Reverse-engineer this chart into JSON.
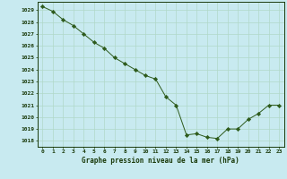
{
  "x": [
    0,
    1,
    2,
    3,
    4,
    5,
    6,
    7,
    8,
    9,
    10,
    11,
    12,
    13,
    14,
    15,
    16,
    17,
    18,
    19,
    20,
    21,
    22,
    23
  ],
  "y": [
    1029.3,
    1028.9,
    1028.2,
    1027.7,
    1027.0,
    1026.3,
    1025.8,
    1025.0,
    1024.5,
    1024.0,
    1023.5,
    1023.2,
    1021.7,
    1021.0,
    1018.5,
    1018.6,
    1018.3,
    1018.2,
    1019.0,
    1019.0,
    1019.8,
    1020.3,
    1021.0,
    1021.0
  ],
  "line_color": "#2d5a1b",
  "marker": "D",
  "marker_size": 2.2,
  "bg_color": "#c8eaf0",
  "grid_color": "#b0d8c8",
  "xlabel": "Graphe pression niveau de la mer (hPa)",
  "xlabel_color": "#1a3a0a",
  "tick_color": "#1a3a0a",
  "ylim_min": 1017.5,
  "ylim_max": 1029.7,
  "xlim_min": -0.5,
  "xlim_max": 23.5,
  "ytick_vals": [
    1018,
    1019,
    1020,
    1021,
    1022,
    1023,
    1024,
    1025,
    1026,
    1027,
    1028,
    1029
  ],
  "xtick_vals": [
    0,
    1,
    2,
    3,
    4,
    5,
    6,
    7,
    8,
    9,
    10,
    11,
    12,
    13,
    14,
    15,
    16,
    17,
    18,
    19,
    20,
    21,
    22,
    23
  ],
  "xtick_labels": [
    "0",
    "1",
    "2",
    "3",
    "4",
    "5",
    "6",
    "7",
    "8",
    "9",
    "10",
    "11",
    "12",
    "13",
    "14",
    "15",
    "16",
    "17",
    "18",
    "19",
    "20",
    "21",
    "22",
    "23"
  ]
}
